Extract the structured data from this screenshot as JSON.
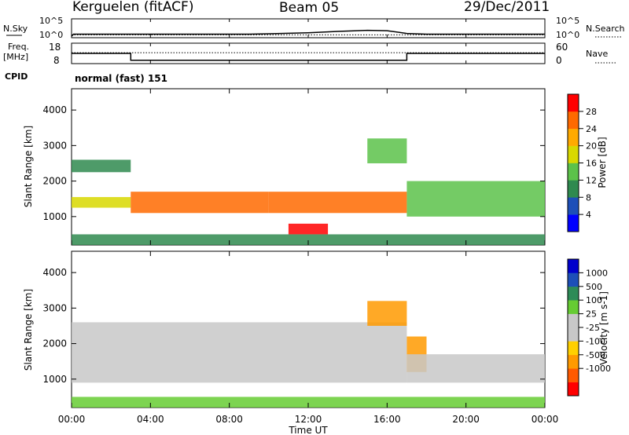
{
  "header": {
    "station": "Kerguelen (fitACF)",
    "beam": "Beam 05",
    "date": "29/Dec/2011"
  },
  "status_panels": {
    "nsky": {
      "label": "N.Sky",
      "left_ticks": [
        "10^5",
        "10^0"
      ],
      "right_ticks": [
        "10^5",
        "10^0"
      ],
      "right_label": "N.Search"
    },
    "freq": {
      "label_line1": "Freq.",
      "label_line2": "[MHz]",
      "left_ticks": [
        "18",
        "8"
      ],
      "right_ticks": [
        "60",
        "0"
      ],
      "right_label": "Nave"
    },
    "cpid": {
      "label": "CPID",
      "value": "normal (fast) 151"
    }
  },
  "time_axis": {
    "title": "Time UT",
    "ticks": [
      "00:00",
      "04:00",
      "08:00",
      "12:00",
      "16:00",
      "20:00",
      "00:00"
    ]
  },
  "colors": {
    "power_scale": [
      "#0000ff",
      "#1d4fb8",
      "#2f8a4f",
      "#5cc24a",
      "#d8d800",
      "#ffaa00",
      "#ff6a00",
      "#ff0000"
    ],
    "velocity_scale": [
      "#ff0000",
      "#ff5a00",
      "#ff9a00",
      "#ffd000",
      "#c8c8c8",
      "#c8c8c8",
      "#66cc33",
      "#2e8b57",
      "#1d4fb8",
      "#0000cc"
    ]
  },
  "chart_data": [
    {
      "type": "line",
      "title": "N.Sky / N.Search",
      "x_range_hours": [
        0,
        24
      ],
      "y_ticks": [
        "10^0",
        "10^5"
      ],
      "series": [
        {
          "name": "N.Sky",
          "x": [
            0,
            0.1,
            3,
            9,
            10,
            12,
            13.5,
            15,
            16,
            17,
            18,
            24
          ],
          "y": [
            0.2,
            0.8,
            0.8,
            0.8,
            0.9,
            1.2,
            1.6,
            1.9,
            1.8,
            1.0,
            0.8,
            0.8
          ]
        },
        {
          "name": "N.Search",
          "x": [
            0,
            24
          ],
          "y": [
            0.6,
            0.6
          ]
        }
      ]
    },
    {
      "type": "line",
      "title": "Freq. / Nave",
      "x_range_hours": [
        0,
        24
      ],
      "y_left_ticks": [
        "8",
        "18"
      ],
      "y_right_ticks": [
        "0",
        "60"
      ],
      "series": [
        {
          "name": "Freq.",
          "x": [
            0,
            3.0,
            3.0,
            17.0,
            17.0,
            24
          ],
          "y": [
            13.2,
            13.2,
            9.4,
            9.4,
            13.2,
            13.2
          ]
        },
        {
          "name": "Nave",
          "x": [
            0,
            24
          ],
          "y": [
            13.6,
            13.6
          ]
        }
      ]
    },
    {
      "type": "heatmap",
      "title": "Power",
      "xlabel": "Time UT",
      "ylabel": "Slant Range [km]",
      "x_range_hours": [
        0,
        24
      ],
      "y_ticks": [
        1000,
        2000,
        3000,
        4000
      ],
      "ylim": [
        200,
        4600
      ],
      "colorbar": {
        "label": "Power [dB]",
        "ticks": [
          4,
          8,
          12,
          16,
          20,
          24,
          28
        ],
        "range": [
          0,
          32
        ]
      },
      "echo_regions": [
        {
          "t": [
            0,
            3
          ],
          "r": [
            2250,
            2600
          ],
          "value": 10
        },
        {
          "t": [
            0,
            3
          ],
          "r": [
            1250,
            1550
          ],
          "value": 18
        },
        {
          "t": [
            3,
            10
          ],
          "r": [
            1100,
            1700
          ],
          "value": 25
        },
        {
          "t": [
            10,
            17
          ],
          "r": [
            1100,
            1700
          ],
          "value": 26
        },
        {
          "t": [
            11,
            13
          ],
          "r": [
            500,
            800
          ],
          "value": 30
        },
        {
          "t": [
            17,
            24
          ],
          "r": [
            1000,
            2000
          ],
          "value": 12
        },
        {
          "t": [
            0,
            24
          ],
          "r": [
            200,
            500
          ],
          "value": 8
        },
        {
          "t": [
            15,
            17
          ],
          "r": [
            2500,
            3200
          ],
          "value": 14
        }
      ]
    },
    {
      "type": "heatmap",
      "title": "Velocity",
      "xlabel": "Time UT",
      "ylabel": "Slant Range [km]",
      "x_range_hours": [
        0,
        24
      ],
      "y_ticks": [
        1000,
        2000,
        3000,
        4000
      ],
      "ylim": [
        200,
        4600
      ],
      "colorbar": {
        "label": "Velocity [m s-1]",
        "ticks": [
          1000,
          500,
          100,
          25,
          -25,
          -100,
          -500,
          -1000
        ]
      },
      "echo_regions": [
        {
          "t": [
            0,
            17
          ],
          "r": [
            900,
            2600
          ],
          "value": 0
        },
        {
          "t": [
            17,
            18
          ],
          "r": [
            1200,
            2200
          ],
          "value": -300
        },
        {
          "t": [
            17,
            24
          ],
          "r": [
            900,
            1700
          ],
          "value": 0
        },
        {
          "t": [
            0,
            24
          ],
          "r": [
            200,
            500
          ],
          "value": 60
        },
        {
          "t": [
            15,
            17
          ],
          "r": [
            2500,
            3200
          ],
          "value": -150
        }
      ]
    }
  ]
}
